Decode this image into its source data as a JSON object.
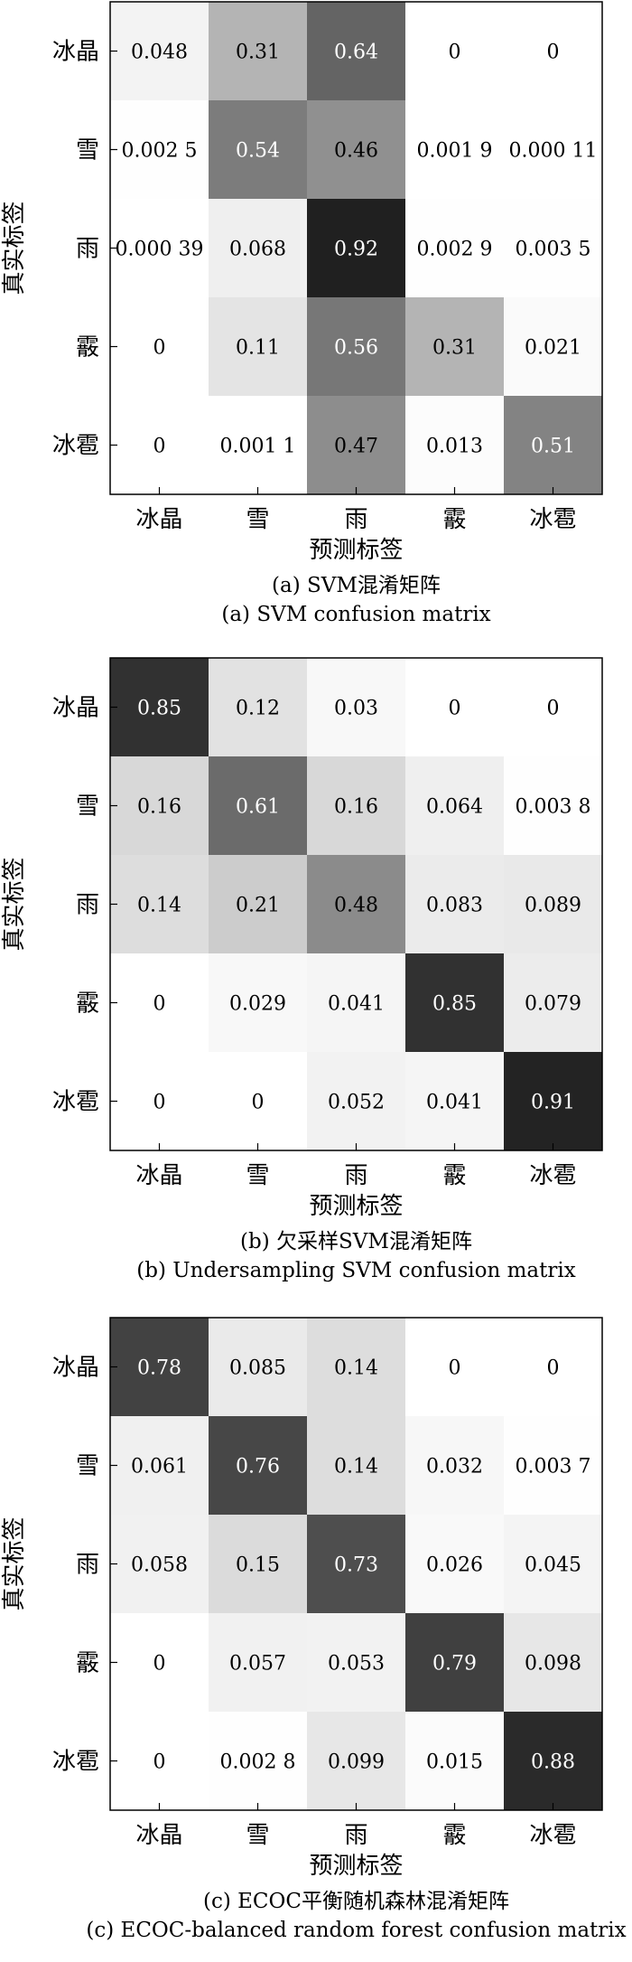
{
  "chart_data": [
    {
      "type": "heatmap",
      "categories": [
        "冰晶",
        "雪",
        "雨",
        "霰",
        "冰雹"
      ],
      "xlabel": "预测标签",
      "ylabel": "真实标签",
      "caption_cn": "(a) SVM混淆矩阵",
      "caption_en": "(a) SVM confusion matrix",
      "values": [
        [
          0.048,
          0.31,
          0.64,
          0,
          0
        ],
        [
          0.0025,
          0.54,
          0.46,
          0.0019,
          0.00011
        ],
        [
          0.00039,
          0.068,
          0.92,
          0.0029,
          0.0035
        ],
        [
          0,
          0.11,
          0.56,
          0.31,
          0.021
        ],
        [
          0,
          0.0011,
          0.47,
          0.013,
          0.51
        ]
      ],
      "labels": [
        [
          "0.048",
          "0.31",
          "0.64",
          "0",
          "0"
        ],
        [
          "0.002 5",
          "0.54",
          "0.46",
          "0.001 9",
          "0.000 11"
        ],
        [
          "0.000 39",
          "0.068",
          "0.92",
          "0.002 9",
          "0.003 5"
        ],
        [
          "0",
          "0.11",
          "0.56",
          "0.31",
          "0.021"
        ],
        [
          "0",
          "0.001 1",
          "0.47",
          "0.013",
          "0.51"
        ]
      ]
    },
    {
      "type": "heatmap",
      "categories": [
        "冰晶",
        "雪",
        "雨",
        "霰",
        "冰雹"
      ],
      "xlabel": "预测标签",
      "ylabel": "真实标签",
      "caption_cn": "(b) 欠采样SVM混淆矩阵",
      "caption_en": "(b) Undersampling SVM confusion matrix",
      "values": [
        [
          0.85,
          0.12,
          0.03,
          0,
          0
        ],
        [
          0.16,
          0.61,
          0.16,
          0.064,
          0.0038
        ],
        [
          0.14,
          0.21,
          0.48,
          0.083,
          0.089
        ],
        [
          0,
          0.029,
          0.041,
          0.85,
          0.079
        ],
        [
          0,
          0,
          0.052,
          0.041,
          0.91
        ]
      ],
      "labels": [
        [
          "0.85",
          "0.12",
          "0.03",
          "0",
          "0"
        ],
        [
          "0.16",
          "0.61",
          "0.16",
          "0.064",
          "0.003 8"
        ],
        [
          "0.14",
          "0.21",
          "0.48",
          "0.083",
          "0.089"
        ],
        [
          "0",
          "0.029",
          "0.041",
          "0.85",
          "0.079"
        ],
        [
          "0",
          "0",
          "0.052",
          "0.041",
          "0.91"
        ]
      ]
    },
    {
      "type": "heatmap",
      "categories": [
        "冰晶",
        "雪",
        "雨",
        "霰",
        "冰雹"
      ],
      "xlabel": "预测标签",
      "ylabel": "真实标签",
      "caption_cn": "(c) ECOC平衡随机森林混淆矩阵",
      "caption_en": "(c) ECOC-balanced random forest confusion matrix",
      "values": [
        [
          0.78,
          0.085,
          0.14,
          0,
          0
        ],
        [
          0.061,
          0.76,
          0.14,
          0.032,
          0.0037
        ],
        [
          0.058,
          0.15,
          0.73,
          0.026,
          0.045
        ],
        [
          0,
          0.057,
          0.053,
          0.79,
          0.098
        ],
        [
          0,
          0.0028,
          0.099,
          0.015,
          0.88
        ]
      ],
      "labels": [
        [
          "0.78",
          "0.085",
          "0.14",
          "0",
          "0"
        ],
        [
          "0.061",
          "0.76",
          "0.14",
          "0.032",
          "0.003 7"
        ],
        [
          "0.058",
          "0.15",
          "0.73",
          "0.026",
          "0.045"
        ],
        [
          "0",
          "0.057",
          "0.053",
          "0.79",
          "0.098"
        ],
        [
          "0",
          "0.002 8",
          "0.099",
          "0.015",
          "0.88"
        ]
      ]
    }
  ]
}
